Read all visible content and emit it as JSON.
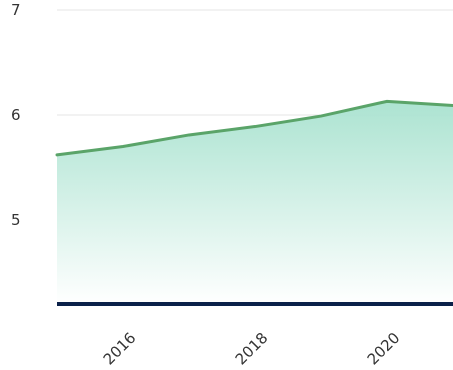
{
  "chart_data": {
    "type": "area",
    "title": "",
    "xlabel": "",
    "ylabel": "",
    "x": [
      2015,
      2016,
      2017,
      2018,
      2019,
      2020,
      2021
    ],
    "series": [
      {
        "values": [
          5.62,
          5.7,
          5.81,
          5.89,
          5.99,
          6.13,
          6.09
        ]
      }
    ],
    "xlim": [
      2015,
      2021
    ],
    "ylim": [
      4.2,
      7.0
    ],
    "y_ticks": [
      "5",
      "6",
      "7"
    ],
    "x_ticks": [
      "2016",
      "2018",
      "2020"
    ],
    "grid": true,
    "legend": "none",
    "colors": {
      "line": "#5aa469",
      "fill_top": "#a8e2cf",
      "fill_bottom": "#ffffff",
      "baseline": "#0b2149",
      "grid": "#e6e6e6",
      "tick_text": "#333333"
    }
  }
}
